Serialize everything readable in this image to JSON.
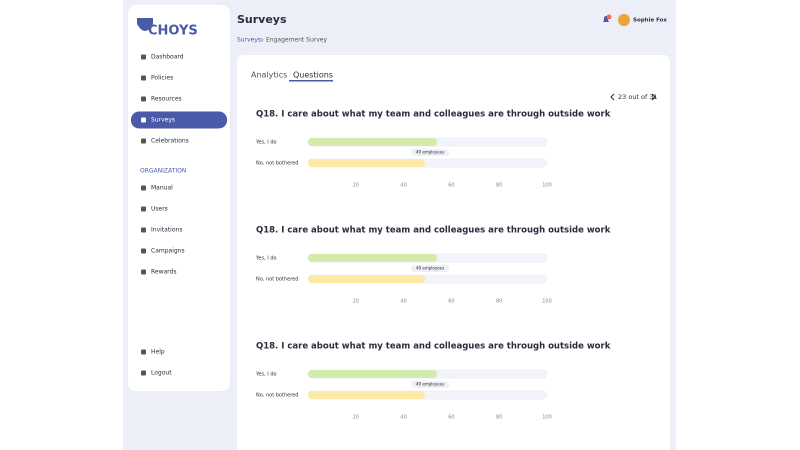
{
  "brand": "CHOYS",
  "nav": [
    "Dashboard",
    "Policies",
    "Resources",
    "Surveys",
    "Celebrations"
  ],
  "section_label": "ORGANIZATION",
  "org_nav": [
    "Manual",
    "Users",
    "Invitations",
    "Campaigns",
    "Rewards"
  ],
  "footer_nav": [
    "Help",
    "Logout"
  ],
  "header": {
    "title": "Surveys",
    "breadcrumb": [
      "Surveys",
      "Engagement Survey"
    ],
    "user": "Sophie Fox"
  },
  "tabs": [
    "Analytics",
    "Questions"
  ],
  "pagination": "23 out of 31",
  "questions": [
    {
      "title": "Q18. I care about what my team and colleagues are through outside work",
      "chart": {
        "type": "bar",
        "categories": [
          "Yes, I do",
          "No, not bothered"
        ],
        "values": [
          54,
          49
        ],
        "value_labels": [
          null,
          "49 employees"
        ],
        "colors": [
          "#d3ebab",
          "#fde8a6"
        ],
        "xlim": [
          0,
          100
        ],
        "xticks": [
          20,
          40,
          60,
          80,
          100
        ]
      }
    },
    {
      "title": "Q18. I care about what my team and colleagues are through outside work",
      "chart": {
        "type": "bar",
        "categories": [
          "Yes, I do",
          "No, not bothered"
        ],
        "values": [
          54,
          49
        ],
        "value_labels": [
          null,
          "49 employees"
        ],
        "colors": [
          "#d3ebab",
          "#fde8a6"
        ],
        "xlim": [
          0,
          100
        ],
        "xticks": [
          20,
          40,
          60,
          80,
          100
        ]
      }
    },
    {
      "title": "Q18. I care about what my team and colleagues are through outside work",
      "chart": {
        "type": "bar",
        "categories": [
          "Yes, I do",
          "No, not bothered"
        ],
        "values": [
          54,
          49
        ],
        "value_labels": [
          null,
          "49 employees"
        ],
        "colors": [
          "#d3ebab",
          "#fde8a6"
        ],
        "xlim": [
          0,
          100
        ],
        "xticks": [
          20,
          40,
          60,
          80,
          100
        ]
      }
    }
  ]
}
